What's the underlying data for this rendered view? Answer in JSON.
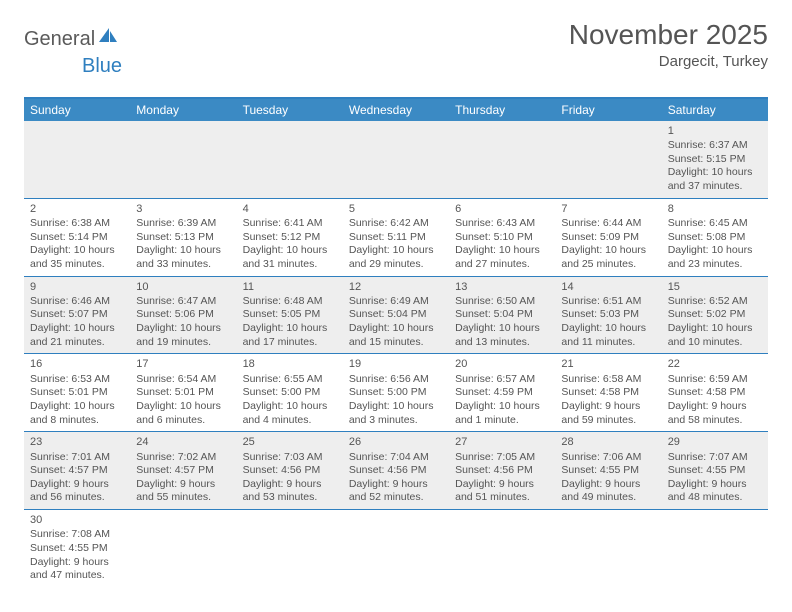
{
  "logo": {
    "text1": "General",
    "text2": "Blue"
  },
  "title": "November 2025",
  "subtitle": "Dargecit, Turkey",
  "colors": {
    "header_bg": "#3b8ac4",
    "header_border": "#2f7fbf",
    "row_odd": "#eeeeee",
    "row_even": "#ffffff",
    "text": "#555555"
  },
  "day_headers": [
    "Sunday",
    "Monday",
    "Tuesday",
    "Wednesday",
    "Thursday",
    "Friday",
    "Saturday"
  ],
  "weeks": [
    [
      null,
      null,
      null,
      null,
      null,
      null,
      {
        "n": "1",
        "sr": "Sunrise: 6:37 AM",
        "ss": "Sunset: 5:15 PM",
        "d1": "Daylight: 10 hours",
        "d2": "and 37 minutes."
      }
    ],
    [
      {
        "n": "2",
        "sr": "Sunrise: 6:38 AM",
        "ss": "Sunset: 5:14 PM",
        "d1": "Daylight: 10 hours",
        "d2": "and 35 minutes."
      },
      {
        "n": "3",
        "sr": "Sunrise: 6:39 AM",
        "ss": "Sunset: 5:13 PM",
        "d1": "Daylight: 10 hours",
        "d2": "and 33 minutes."
      },
      {
        "n": "4",
        "sr": "Sunrise: 6:41 AM",
        "ss": "Sunset: 5:12 PM",
        "d1": "Daylight: 10 hours",
        "d2": "and 31 minutes."
      },
      {
        "n": "5",
        "sr": "Sunrise: 6:42 AM",
        "ss": "Sunset: 5:11 PM",
        "d1": "Daylight: 10 hours",
        "d2": "and 29 minutes."
      },
      {
        "n": "6",
        "sr": "Sunrise: 6:43 AM",
        "ss": "Sunset: 5:10 PM",
        "d1": "Daylight: 10 hours",
        "d2": "and 27 minutes."
      },
      {
        "n": "7",
        "sr": "Sunrise: 6:44 AM",
        "ss": "Sunset: 5:09 PM",
        "d1": "Daylight: 10 hours",
        "d2": "and 25 minutes."
      },
      {
        "n": "8",
        "sr": "Sunrise: 6:45 AM",
        "ss": "Sunset: 5:08 PM",
        "d1": "Daylight: 10 hours",
        "d2": "and 23 minutes."
      }
    ],
    [
      {
        "n": "9",
        "sr": "Sunrise: 6:46 AM",
        "ss": "Sunset: 5:07 PM",
        "d1": "Daylight: 10 hours",
        "d2": "and 21 minutes."
      },
      {
        "n": "10",
        "sr": "Sunrise: 6:47 AM",
        "ss": "Sunset: 5:06 PM",
        "d1": "Daylight: 10 hours",
        "d2": "and 19 minutes."
      },
      {
        "n": "11",
        "sr": "Sunrise: 6:48 AM",
        "ss": "Sunset: 5:05 PM",
        "d1": "Daylight: 10 hours",
        "d2": "and 17 minutes."
      },
      {
        "n": "12",
        "sr": "Sunrise: 6:49 AM",
        "ss": "Sunset: 5:04 PM",
        "d1": "Daylight: 10 hours",
        "d2": "and 15 minutes."
      },
      {
        "n": "13",
        "sr": "Sunrise: 6:50 AM",
        "ss": "Sunset: 5:04 PM",
        "d1": "Daylight: 10 hours",
        "d2": "and 13 minutes."
      },
      {
        "n": "14",
        "sr": "Sunrise: 6:51 AM",
        "ss": "Sunset: 5:03 PM",
        "d1": "Daylight: 10 hours",
        "d2": "and 11 minutes."
      },
      {
        "n": "15",
        "sr": "Sunrise: 6:52 AM",
        "ss": "Sunset: 5:02 PM",
        "d1": "Daylight: 10 hours",
        "d2": "and 10 minutes."
      }
    ],
    [
      {
        "n": "16",
        "sr": "Sunrise: 6:53 AM",
        "ss": "Sunset: 5:01 PM",
        "d1": "Daylight: 10 hours",
        "d2": "and 8 minutes."
      },
      {
        "n": "17",
        "sr": "Sunrise: 6:54 AM",
        "ss": "Sunset: 5:01 PM",
        "d1": "Daylight: 10 hours",
        "d2": "and 6 minutes."
      },
      {
        "n": "18",
        "sr": "Sunrise: 6:55 AM",
        "ss": "Sunset: 5:00 PM",
        "d1": "Daylight: 10 hours",
        "d2": "and 4 minutes."
      },
      {
        "n": "19",
        "sr": "Sunrise: 6:56 AM",
        "ss": "Sunset: 5:00 PM",
        "d1": "Daylight: 10 hours",
        "d2": "and 3 minutes."
      },
      {
        "n": "20",
        "sr": "Sunrise: 6:57 AM",
        "ss": "Sunset: 4:59 PM",
        "d1": "Daylight: 10 hours",
        "d2": "and 1 minute."
      },
      {
        "n": "21",
        "sr": "Sunrise: 6:58 AM",
        "ss": "Sunset: 4:58 PM",
        "d1": "Daylight: 9 hours",
        "d2": "and 59 minutes."
      },
      {
        "n": "22",
        "sr": "Sunrise: 6:59 AM",
        "ss": "Sunset: 4:58 PM",
        "d1": "Daylight: 9 hours",
        "d2": "and 58 minutes."
      }
    ],
    [
      {
        "n": "23",
        "sr": "Sunrise: 7:01 AM",
        "ss": "Sunset: 4:57 PM",
        "d1": "Daylight: 9 hours",
        "d2": "and 56 minutes."
      },
      {
        "n": "24",
        "sr": "Sunrise: 7:02 AM",
        "ss": "Sunset: 4:57 PM",
        "d1": "Daylight: 9 hours",
        "d2": "and 55 minutes."
      },
      {
        "n": "25",
        "sr": "Sunrise: 7:03 AM",
        "ss": "Sunset: 4:56 PM",
        "d1": "Daylight: 9 hours",
        "d2": "and 53 minutes."
      },
      {
        "n": "26",
        "sr": "Sunrise: 7:04 AM",
        "ss": "Sunset: 4:56 PM",
        "d1": "Daylight: 9 hours",
        "d2": "and 52 minutes."
      },
      {
        "n": "27",
        "sr": "Sunrise: 7:05 AM",
        "ss": "Sunset: 4:56 PM",
        "d1": "Daylight: 9 hours",
        "d2": "and 51 minutes."
      },
      {
        "n": "28",
        "sr": "Sunrise: 7:06 AM",
        "ss": "Sunset: 4:55 PM",
        "d1": "Daylight: 9 hours",
        "d2": "and 49 minutes."
      },
      {
        "n": "29",
        "sr": "Sunrise: 7:07 AM",
        "ss": "Sunset: 4:55 PM",
        "d1": "Daylight: 9 hours",
        "d2": "and 48 minutes."
      }
    ],
    [
      {
        "n": "30",
        "sr": "Sunrise: 7:08 AM",
        "ss": "Sunset: 4:55 PM",
        "d1": "Daylight: 9 hours",
        "d2": "and 47 minutes."
      },
      null,
      null,
      null,
      null,
      null,
      null
    ]
  ]
}
